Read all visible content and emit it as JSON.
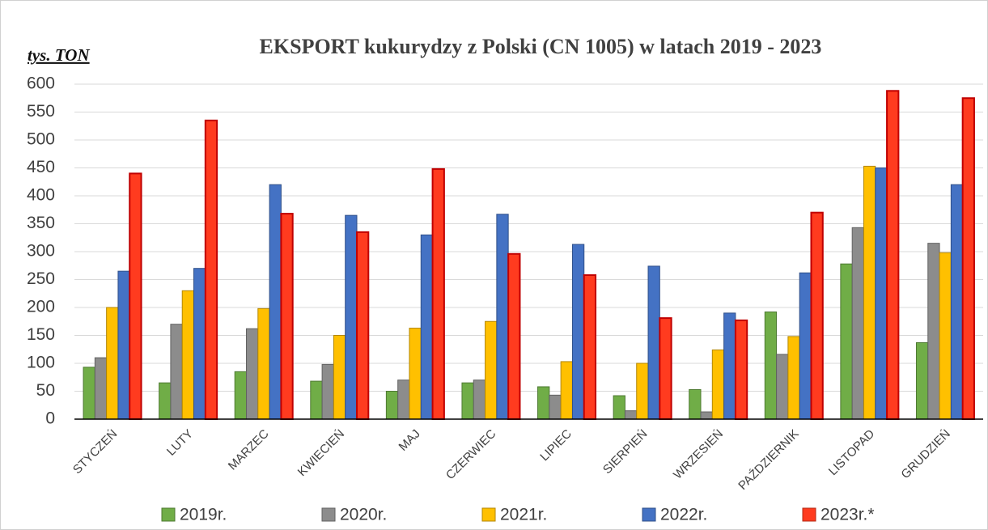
{
  "chart_data": {
    "type": "bar",
    "title": "EKSPORT kukurydzy z Polski (CN 1005) w latach 2019 - 2023",
    "y_label": "tys. TON",
    "categories": [
      "STYCZEŃ",
      "LUTY",
      "MARZEC",
      "KWIECIEŃ",
      "MAJ",
      "CZERWIEC",
      "LIPIEC",
      "SIERPIEŃ",
      "WRZESIEŃ",
      "PAŹDZIERNIK",
      "LISTOPAD",
      "GRUDZIEŃ"
    ],
    "series": [
      {
        "name": "2019r.",
        "color": "#70ad47",
        "values": [
          93,
          65,
          85,
          68,
          50,
          65,
          58,
          42,
          53,
          192,
          278,
          137
        ]
      },
      {
        "name": "2020r.",
        "color": "#8c8c8c",
        "values": [
          110,
          170,
          162,
          98,
          70,
          70,
          43,
          15,
          13,
          116,
          343,
          315
        ]
      },
      {
        "name": "2021r.",
        "color": "#ffc000",
        "values": [
          200,
          230,
          198,
          150,
          163,
          175,
          103,
          100,
          124,
          148,
          453,
          298
        ]
      },
      {
        "name": "2022r.",
        "color": "#4472c4",
        "values": [
          265,
          270,
          420,
          365,
          330,
          367,
          313,
          274,
          190,
          262,
          450,
          420
        ]
      },
      {
        "name": "2023r.*",
        "color": "#ff3b1f",
        "values": [
          440,
          535,
          368,
          335,
          448,
          296,
          258,
          181,
          177,
          370,
          588,
          575
        ]
      }
    ],
    "ylim": [
      0,
      600
    ],
    "yticks": [
      0,
      50,
      100,
      150,
      200,
      250,
      300,
      350,
      400,
      450,
      500,
      550,
      600
    ],
    "grid": true,
    "legend": "bottom"
  }
}
